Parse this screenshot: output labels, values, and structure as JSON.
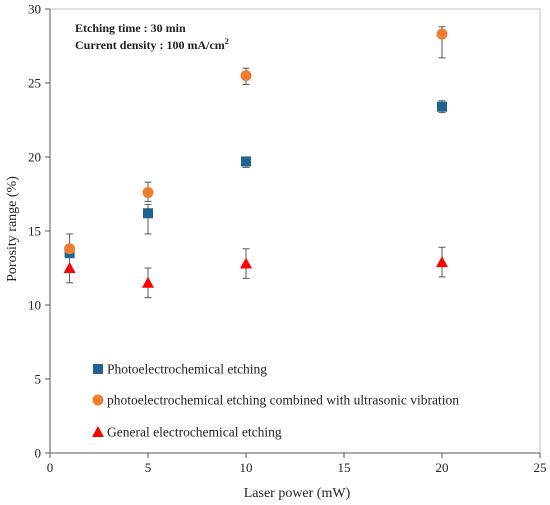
{
  "chart_data": {
    "type": "scatter",
    "xlabel": "Laser power (mW)",
    "ylabel": "Porosity range (%)",
    "xlim": [
      0,
      25
    ],
    "ylim": [
      0,
      30
    ],
    "xticks": [
      0,
      5,
      10,
      15,
      20,
      25
    ],
    "yticks": [
      0,
      5,
      10,
      15,
      20,
      25,
      30
    ],
    "grid": false,
    "legend_position": "bottom-left",
    "annotations": {
      "etching_time": "Etching time : 30 min",
      "current_density": "Current density : 100 mA/cm",
      "current_density_sup": "2"
    },
    "series": [
      {
        "name": "Photoelectrochemical etching",
        "marker": "square",
        "color": "#1f6391",
        "x": [
          1,
          5,
          10,
          20
        ],
        "y": [
          13.5,
          16.2,
          19.7,
          23.4
        ],
        "err_low": [
          0.2,
          1.4,
          0.4,
          0.4
        ],
        "err_high": [
          0.3,
          0.6,
          0.3,
          0.4
        ]
      },
      {
        "name": "photoelectrochemical etching combined with ultrasonic vibration",
        "marker": "circle",
        "color": "#ed7d31",
        "x": [
          1,
          5,
          10,
          20
        ],
        "y": [
          13.8,
          17.6,
          25.5,
          28.3
        ],
        "err_low": [
          0.3,
          0.6,
          0.6,
          1.6
        ],
        "err_high": [
          1.0,
          0.7,
          0.5,
          0.5
        ]
      },
      {
        "name": "General electrochemical etching",
        "marker": "triangle",
        "color": "#ff0000",
        "x": [
          1,
          5,
          10,
          20
        ],
        "y": [
          12.5,
          11.5,
          12.8,
          12.9
        ],
        "err_low": [
          1.0,
          1.0,
          1.0,
          1.0
        ],
        "err_high": [
          1.0,
          1.0,
          1.0,
          1.0
        ]
      }
    ]
  }
}
